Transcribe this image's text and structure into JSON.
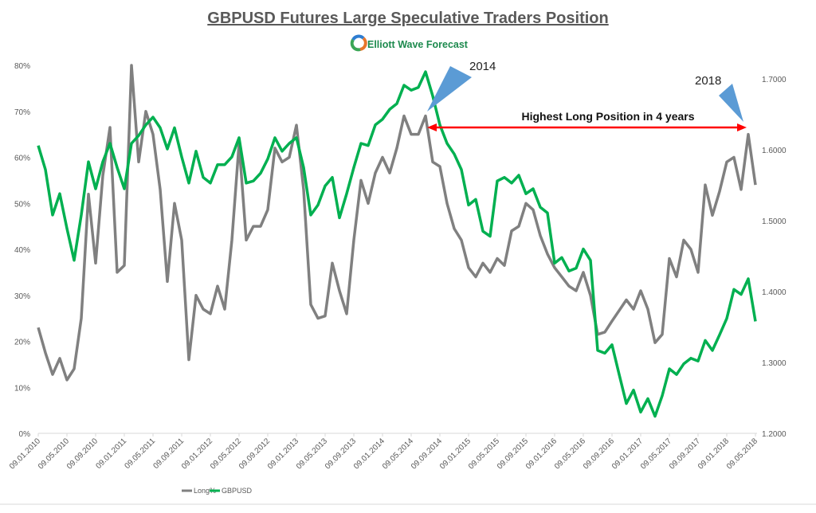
{
  "chart_data": {
    "type": "line",
    "title": "GBPUSD Futures Large Speculative Traders Position",
    "logo_text": "Elliott Wave Forecast",
    "x_tick_labels": [
      "09.01.2010",
      "09.05.2010",
      "09.09.2010",
      "09.01.2011",
      "09.05.2011",
      "09.09.2011",
      "09.01.2012",
      "09.05.2012",
      "09.09.2012",
      "09.01.2013",
      "09.05.2013",
      "09.09.2013",
      "09.01.2014",
      "09.05.2014",
      "09.09.2014",
      "09.01.2015",
      "09.05.2015",
      "09.09.2015",
      "09.01.2016",
      "09.05.2016",
      "09.09.2016",
      "09.01.2017",
      "09.05.2017",
      "09.09.2017",
      "09.01.2018",
      "09.05.2018"
    ],
    "y_left": {
      "ticks": [
        "0%",
        "10%",
        "20%",
        "30%",
        "40%",
        "50%",
        "60%",
        "70%",
        "80%"
      ],
      "range": [
        0,
        80
      ],
      "unit": "%"
    },
    "y_right": {
      "ticks": [
        "1.2000",
        "1.3000",
        "1.4000",
        "1.5000",
        "1.6000",
        "1.7000"
      ],
      "range": [
        1.2,
        1.7
      ]
    },
    "grid": false,
    "legend_position": "bottom",
    "x": [
      "2010-01",
      "2010-02",
      "2010-03",
      "2010-04",
      "2010-05",
      "2010-06",
      "2010-07",
      "2010-08",
      "2010-09",
      "2010-10",
      "2010-11",
      "2010-12",
      "2011-01",
      "2011-02",
      "2011-03",
      "2011-04",
      "2011-05",
      "2011-06",
      "2011-07",
      "2011-08",
      "2011-09",
      "2011-10",
      "2011-11",
      "2011-12",
      "2012-01",
      "2012-02",
      "2012-03",
      "2012-04",
      "2012-05",
      "2012-06",
      "2012-07",
      "2012-08",
      "2012-09",
      "2012-10",
      "2012-11",
      "2012-12",
      "2013-01",
      "2013-02",
      "2013-03",
      "2013-04",
      "2013-05",
      "2013-06",
      "2013-07",
      "2013-08",
      "2013-09",
      "2013-10",
      "2013-11",
      "2013-12",
      "2014-01",
      "2014-02",
      "2014-03",
      "2014-04",
      "2014-05",
      "2014-06",
      "2014-07",
      "2014-08",
      "2014-09",
      "2014-10",
      "2014-11",
      "2014-12",
      "2015-01",
      "2015-02",
      "2015-03",
      "2015-04",
      "2015-05",
      "2015-06",
      "2015-07",
      "2015-08",
      "2015-09",
      "2015-10",
      "2015-11",
      "2015-12",
      "2016-01",
      "2016-02",
      "2016-03",
      "2016-04",
      "2016-05",
      "2016-06",
      "2016-07",
      "2016-08",
      "2016-09",
      "2016-10",
      "2016-11",
      "2016-12",
      "2017-01",
      "2017-02",
      "2017-03",
      "2017-04",
      "2017-05",
      "2017-06",
      "2017-07",
      "2017-08",
      "2017-09",
      "2017-10",
      "2017-11",
      "2017-12",
      "2018-01",
      "2018-02",
      "2018-03",
      "2018-04",
      "2018-05"
    ],
    "series": [
      {
        "name": "Long%",
        "axis": "left",
        "color": "#808080",
        "values": [
          23,
          17.5,
          12.8,
          16.3,
          11.6,
          14,
          25,
          52,
          37,
          56,
          66.5,
          35,
          36.5,
          80,
          59,
          70,
          65,
          53,
          33,
          50,
          42,
          16,
          30,
          27,
          26,
          32,
          27,
          42,
          63,
          42,
          45,
          45,
          48.6,
          62,
          59,
          60,
          67,
          53,
          28,
          25,
          25.5,
          37,
          31,
          26,
          42,
          55,
          50,
          56.6,
          60,
          56.6,
          62,
          69,
          65,
          65,
          69,
          59,
          58,
          50,
          44.5,
          42,
          36,
          34,
          37,
          35,
          38,
          36.5,
          44,
          45,
          50,
          48.6,
          43,
          39,
          36,
          34,
          32,
          31,
          35,
          30,
          21.5,
          22,
          24.4,
          26.7,
          29,
          27,
          31,
          27,
          19.7,
          21.5,
          38,
          34,
          42,
          40,
          35,
          54,
          47.4,
          52.6,
          59,
          60,
          53,
          65,
          54
        ]
      },
      {
        "name": "GBPUSD",
        "axis": "right",
        "color": "#00b050",
        "values": [
          1.606,
          1.572,
          1.508,
          1.538,
          1.489,
          1.444,
          1.508,
          1.583,
          1.545,
          1.583,
          1.609,
          1.575,
          1.545,
          1.609,
          1.62,
          1.635,
          1.646,
          1.631,
          1.601,
          1.631,
          1.59,
          1.553,
          1.598,
          1.561,
          1.553,
          1.579,
          1.579,
          1.59,
          1.617,
          1.553,
          1.556,
          1.567,
          1.587,
          1.617,
          1.598,
          1.609,
          1.617,
          1.575,
          1.508,
          1.522,
          1.549,
          1.561,
          1.504,
          1.538,
          1.575,
          1.609,
          1.606,
          1.635,
          1.643,
          1.657,
          1.665,
          1.691,
          1.684,
          1.688,
          1.71,
          1.676,
          1.635,
          1.609,
          1.594,
          1.572,
          1.522,
          1.53,
          1.485,
          1.478,
          1.556,
          1.561,
          1.553,
          1.564,
          1.538,
          1.545,
          1.519,
          1.511,
          1.44,
          1.448,
          1.429,
          1.433,
          1.46,
          1.444,
          1.317,
          1.313,
          1.325,
          1.283,
          1.242,
          1.261,
          1.23,
          1.249,
          1.224,
          1.253,
          1.291,
          1.283,
          1.298,
          1.306,
          1.302,
          1.331,
          1.317,
          1.339,
          1.362,
          1.403,
          1.396,
          1.418,
          1.358
        ]
      }
    ],
    "annotations": {
      "callout_2014": "2014",
      "callout_2018": "2018",
      "arrow_label": "Highest Long Position in 4 years",
      "arrow_color": "#ff0000",
      "callout_color": "#5b9bd5"
    }
  }
}
